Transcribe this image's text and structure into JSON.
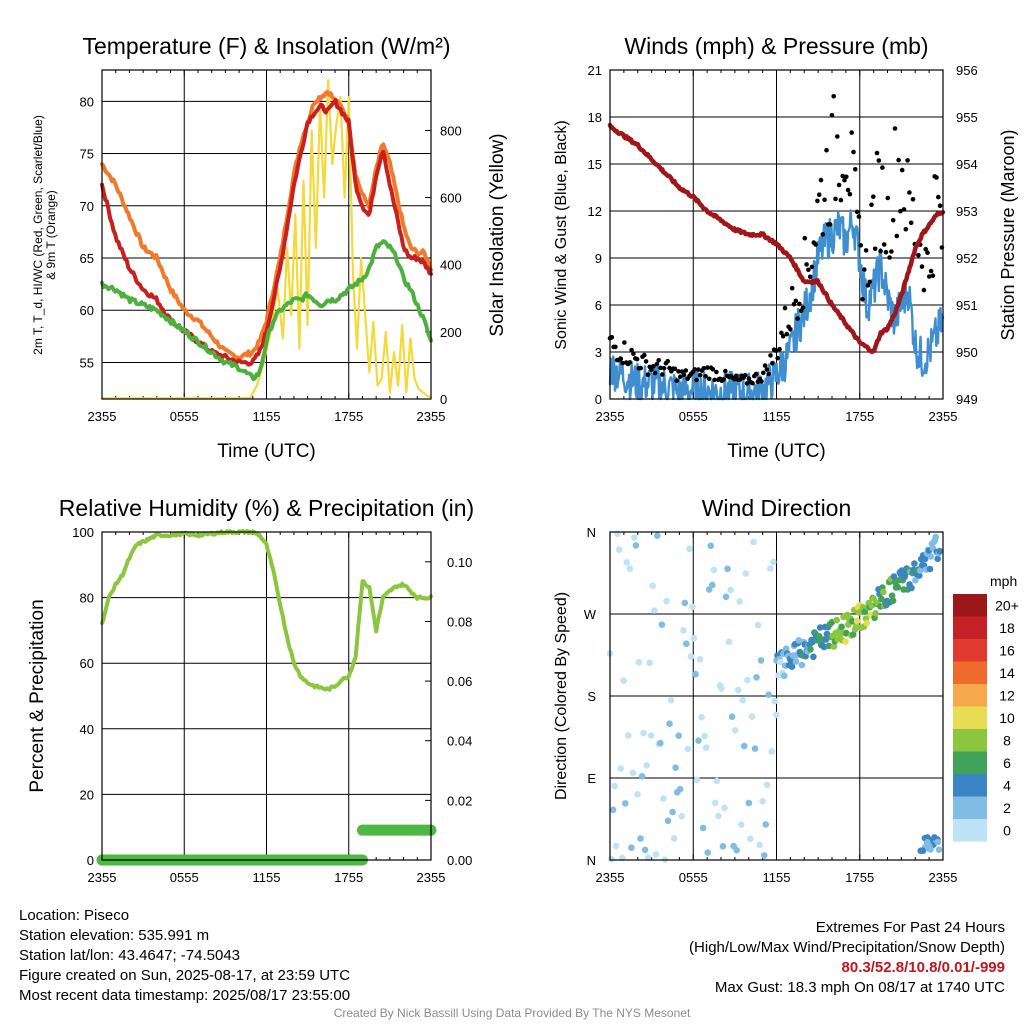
{
  "chart_data": [
    {
      "type": "line",
      "title": "Temperature (F) & Insolation (W/m²)",
      "xlabel": "Time (UTC)",
      "ylabel": "2m T, T_d, HI/WC (Red, Green, Scarlet/Blue) & 9m T (Orange)",
      "y2label": "Solar Insolation (Yellow)",
      "x_ticks": [
        "2355",
        "0555",
        "1155",
        "1755",
        "2355"
      ],
      "y_ticks": [
        55,
        60,
        65,
        70,
        75,
        80
      ],
      "y2_ticks": [
        0,
        200,
        400,
        600,
        800
      ],
      "ylim": [
        51.5,
        83
      ],
      "y2lim": [
        0,
        980
      ],
      "xlim": [
        0,
        24
      ],
      "grid": true,
      "series": [
        {
          "name": "2m T",
          "color": "#c9201e",
          "x": [
            0,
            1,
            2,
            3,
            4,
            5,
            6,
            7,
            8,
            9,
            10,
            11,
            11.5,
            12,
            12.5,
            13,
            13.5,
            14,
            14.5,
            15,
            15.5,
            16,
            16.5,
            17,
            17.5,
            18,
            18.5,
            19,
            19.5,
            20,
            20.5,
            21,
            21.5,
            22,
            22.5,
            23,
            23.5,
            24
          ],
          "y": [
            72,
            67,
            64,
            62,
            61,
            59,
            58,
            57,
            56,
            55.5,
            55,
            55,
            56,
            58,
            61,
            64,
            68,
            72,
            75,
            78,
            79,
            79.5,
            79,
            80,
            79,
            78,
            72,
            70,
            69,
            73,
            75.5,
            72,
            69,
            66,
            65,
            65,
            64.5,
            63.5
          ]
        },
        {
          "name": "9m T",
          "color": "#f07a2a",
          "x": [
            0,
            1,
            2,
            3,
            4,
            5,
            6,
            7,
            8,
            9,
            10,
            11,
            11.5,
            12,
            12.5,
            13,
            13.5,
            14,
            14.5,
            15,
            15.5,
            16,
            16.5,
            17,
            17.5,
            18,
            18.5,
            19,
            19.5,
            20,
            20.5,
            21,
            21.5,
            22,
            22.5,
            23,
            23.5,
            24
          ],
          "y": [
            74,
            72,
            69,
            66,
            65,
            62,
            60,
            59,
            57.5,
            56,
            55.5,
            56,
            57,
            59,
            62,
            65,
            69,
            73,
            76,
            78,
            80,
            80.5,
            81,
            80,
            79.5,
            78,
            73,
            71,
            70,
            73.5,
            76,
            74,
            71,
            68,
            66,
            65.5,
            65.5,
            64
          ]
        },
        {
          "name": "2m Td",
          "color": "#4db03d",
          "x": [
            0,
            1,
            2,
            3,
            4,
            5,
            6,
            7,
            8,
            9,
            10,
            11,
            11.5,
            12,
            12.5,
            13,
            13.5,
            14,
            14.5,
            15,
            15.5,
            16,
            16.5,
            17,
            17.5,
            18,
            18.5,
            19,
            19.5,
            20,
            20.5,
            21,
            21.5,
            22,
            22.5,
            23,
            23.5,
            24
          ],
          "y": [
            62.5,
            62,
            61,
            60.5,
            60,
            59,
            58,
            57,
            56,
            55,
            54.5,
            53.5,
            54,
            57,
            59,
            60,
            60.5,
            61,
            61,
            61.5,
            61,
            60.5,
            61,
            61,
            61.5,
            62,
            62.5,
            63,
            64,
            66,
            66.5,
            66,
            65,
            63,
            62,
            60.5,
            59,
            57
          ]
        },
        {
          "name": "Solar Insolation",
          "color": "#f4d93a",
          "axis": "y2",
          "x": [
            0,
            2,
            4,
            6,
            8,
            10,
            10.8,
            11.3,
            11.8,
            12.3,
            12.8,
            13.2,
            13.5,
            13.8,
            14.1,
            14.4,
            14.7,
            15,
            15.3,
            15.6,
            15.9,
            16.2,
            16.5,
            16.8,
            17.1,
            17.4,
            17.7,
            18,
            18.3,
            18.6,
            18.9,
            19.2,
            19.5,
            19.8,
            20.1,
            20.4,
            20.7,
            21,
            21.3,
            21.6,
            21.9,
            22.2,
            22.5,
            22.8,
            23.1,
            23.4,
            23.7,
            24
          ],
          "y": [
            2,
            2,
            2,
            2,
            2,
            2,
            3,
            40,
            110,
            200,
            330,
            180,
            450,
            250,
            550,
            150,
            650,
            220,
            800,
            450,
            880,
            600,
            950,
            700,
            820,
            900,
            600,
            900,
            380,
            150,
            420,
            250,
            80,
            230,
            40,
            60,
            200,
            20,
            140,
            40,
            220,
            20,
            180,
            60,
            30,
            20,
            10,
            5
          ]
        }
      ]
    },
    {
      "type": "scatter",
      "title": "Winds (mph) & Pressure (mb)",
      "xlabel": "Time (UTC)",
      "ylabel": "Sonic Wind & Gust (Blue, Black)",
      "y2label": "Station Pressure (Maroon)",
      "x_ticks": [
        "2355",
        "0555",
        "1155",
        "1755",
        "2355"
      ],
      "y_ticks": [
        0,
        3,
        6,
        9,
        12,
        15,
        18,
        21
      ],
      "y2_ticks": [
        949,
        950,
        951,
        952,
        953,
        954,
        955,
        956
      ],
      "ylim": [
        0,
        21
      ],
      "y2lim": [
        949,
        956
      ],
      "xlim": [
        0,
        24
      ],
      "grid": true,
      "series": [
        {
          "name": "Sonic Wind",
          "color": "#3f8fd0",
          "x": [
            0,
            1,
            2,
            3,
            4,
            5,
            6,
            7,
            8,
            9,
            10,
            11,
            12,
            13,
            13.5,
            14,
            14.5,
            15,
            15.5,
            16,
            16.5,
            17,
            17.5,
            18,
            18.5,
            19,
            19.5,
            20,
            20.5,
            21,
            21.5,
            22,
            22.5,
            23,
            23.5,
            24
          ],
          "y": [
            2,
            1.5,
            1,
            1,
            0.8,
            0.5,
            0.6,
            0.5,
            0.4,
            0.5,
            0.4,
            0.6,
            1.5,
            3,
            4.5,
            5.5,
            7,
            9,
            10,
            10.5,
            11,
            10,
            11.5,
            9,
            6,
            7,
            8.5,
            6.5,
            5,
            6,
            7,
            3.5,
            2.5,
            3,
            4,
            5
          ]
        },
        {
          "name": "Gust",
          "color": "#000000",
          "x": [
            0,
            1,
            2,
            3,
            4,
            5,
            6,
            7,
            8,
            9,
            10,
            11,
            12,
            12.5,
            13,
            13.5,
            14,
            14.5,
            15,
            15.5,
            16,
            16.5,
            17,
            17.5,
            18,
            18.5,
            19,
            19.5,
            20,
            20.5,
            21,
            21.5,
            22,
            22.5,
            23,
            23.5,
            24
          ],
          "y": [
            3.5,
            3,
            2.5,
            2,
            2,
            1.5,
            1.5,
            1.8,
            1.5,
            1.2,
            1.2,
            1.5,
            3,
            4.5,
            5.5,
            7,
            8,
            9.5,
            12,
            14,
            15,
            16.5,
            17.5,
            13,
            9,
            8,
            12,
            13,
            11,
            14,
            15,
            12,
            11,
            9.5,
            8,
            13,
            10
          ]
        },
        {
          "name": "Station Pressure",
          "color": "#a0161a",
          "axis": "y2",
          "x": [
            0,
            1,
            2,
            3,
            4,
            5,
            6,
            7,
            8,
            9,
            10,
            11,
            12,
            13,
            14,
            15,
            16,
            16.5,
            17,
            17.5,
            18,
            18.5,
            19,
            19.5,
            20,
            20.5,
            21,
            21.5,
            22,
            22.5,
            23,
            23.5,
            24
          ],
          "y": [
            954.8,
            954.6,
            954.4,
            954.1,
            953.8,
            953.5,
            953.3,
            953.0,
            952.8,
            952.6,
            952.5,
            952.5,
            952.3,
            952.0,
            951.5,
            951.5,
            951.0,
            950.8,
            950.6,
            950.4,
            950.2,
            950.1,
            950.0,
            950.4,
            950.5,
            950.8,
            951.2,
            951.7,
            952.2,
            952.5,
            952.7,
            952.9,
            953.0
          ]
        }
      ]
    },
    {
      "type": "line",
      "title": "Relative Humidity (%) & Precipitation (in)",
      "ylabel": "Percent & Precipitation",
      "x_ticks": [
        "2355",
        "0555",
        "1155",
        "1755",
        "2355"
      ],
      "y_ticks": [
        0,
        20,
        40,
        60,
        80,
        100
      ],
      "y2_ticks": [
        "0.00",
        "0.02",
        "0.04",
        "0.06",
        "0.08",
        "0.10"
      ],
      "ylim": [
        0,
        100
      ],
      "y2lim": [
        0,
        0.11
      ],
      "xlim": [
        0,
        24
      ],
      "grid": true,
      "series": [
        {
          "name": "Relative Humidity",
          "color": "#8cc63f",
          "x": [
            0,
            0.5,
            1,
            1.5,
            2,
            2.5,
            3,
            3.5,
            4,
            5,
            6,
            7,
            8,
            9,
            10,
            11,
            11.5,
            12,
            12.5,
            13,
            13.5,
            14,
            14.5,
            15,
            15.5,
            16,
            16.5,
            17,
            17.5,
            18,
            18.5,
            19,
            19.5,
            20,
            20.5,
            21,
            21.5,
            22,
            22.5,
            23,
            23.5,
            24
          ],
          "y": [
            72,
            80,
            84,
            87,
            92,
            96,
            97,
            98,
            99,
            99,
            99.5,
            99,
            99.5,
            100,
            100,
            100,
            99,
            96,
            88,
            78,
            68,
            60,
            56,
            54,
            53,
            52.5,
            52,
            53,
            55,
            56,
            62,
            85,
            83,
            70,
            80,
            82,
            83.5,
            84,
            82,
            80,
            80,
            80
          ]
        },
        {
          "name": "Precipitation",
          "color": "#4db843",
          "axis": "y2",
          "x": [
            0,
            19,
            19,
            24
          ],
          "y": [
            0,
            0,
            0.01,
            0.01
          ]
        }
      ]
    },
    {
      "type": "scatter",
      "title": "Wind Direction",
      "ylabel": "Direction (Colored By Speed)",
      "x_ticks": [
        "2355",
        "0555",
        "1155",
        "1755",
        "2355"
      ],
      "y_ticks": [
        "N",
        "E",
        "S",
        "W",
        "N"
      ],
      "ylim": [
        0,
        360
      ],
      "xlim": [
        0,
        24
      ],
      "grid": true,
      "colorbar": {
        "unit": "mph",
        "labels": [
          "20+",
          "18",
          "16",
          "14",
          "12",
          "10",
          "8",
          "6",
          "4",
          "2",
          "0"
        ],
        "colors": [
          "#9c1719",
          "#c62027",
          "#e03b2e",
          "#ef6b2d",
          "#f7a84a",
          "#e8dc53",
          "#8cc63f",
          "#41a35a",
          "#3c85c4",
          "#7fbde4",
          "#bfe3f6"
        ]
      }
    }
  ],
  "info": {
    "location": "Location: Piseco",
    "elevation": "Station elevation: 535.991 m",
    "latlon": "Station lat/lon: 43.4647; -74.5043",
    "created": "Figure created on Sun, 2025-08-17, at 23:59 UTC",
    "recent": "Most recent data timestamp: 2025/08/17 23:55:00"
  },
  "extremes": {
    "title": "Extremes For Past 24 Hours",
    "legend": "(High/Low/Max Wind/Precipitation/Snow Depth)",
    "values": "80.3/52.8/10.8/0.01/-999",
    "gust": "Max Gust: 18.3 mph On 08/17 at 1740 UTC"
  },
  "credit": "Created By Nick Bassill Using Data Provided By The NYS Mesonet"
}
